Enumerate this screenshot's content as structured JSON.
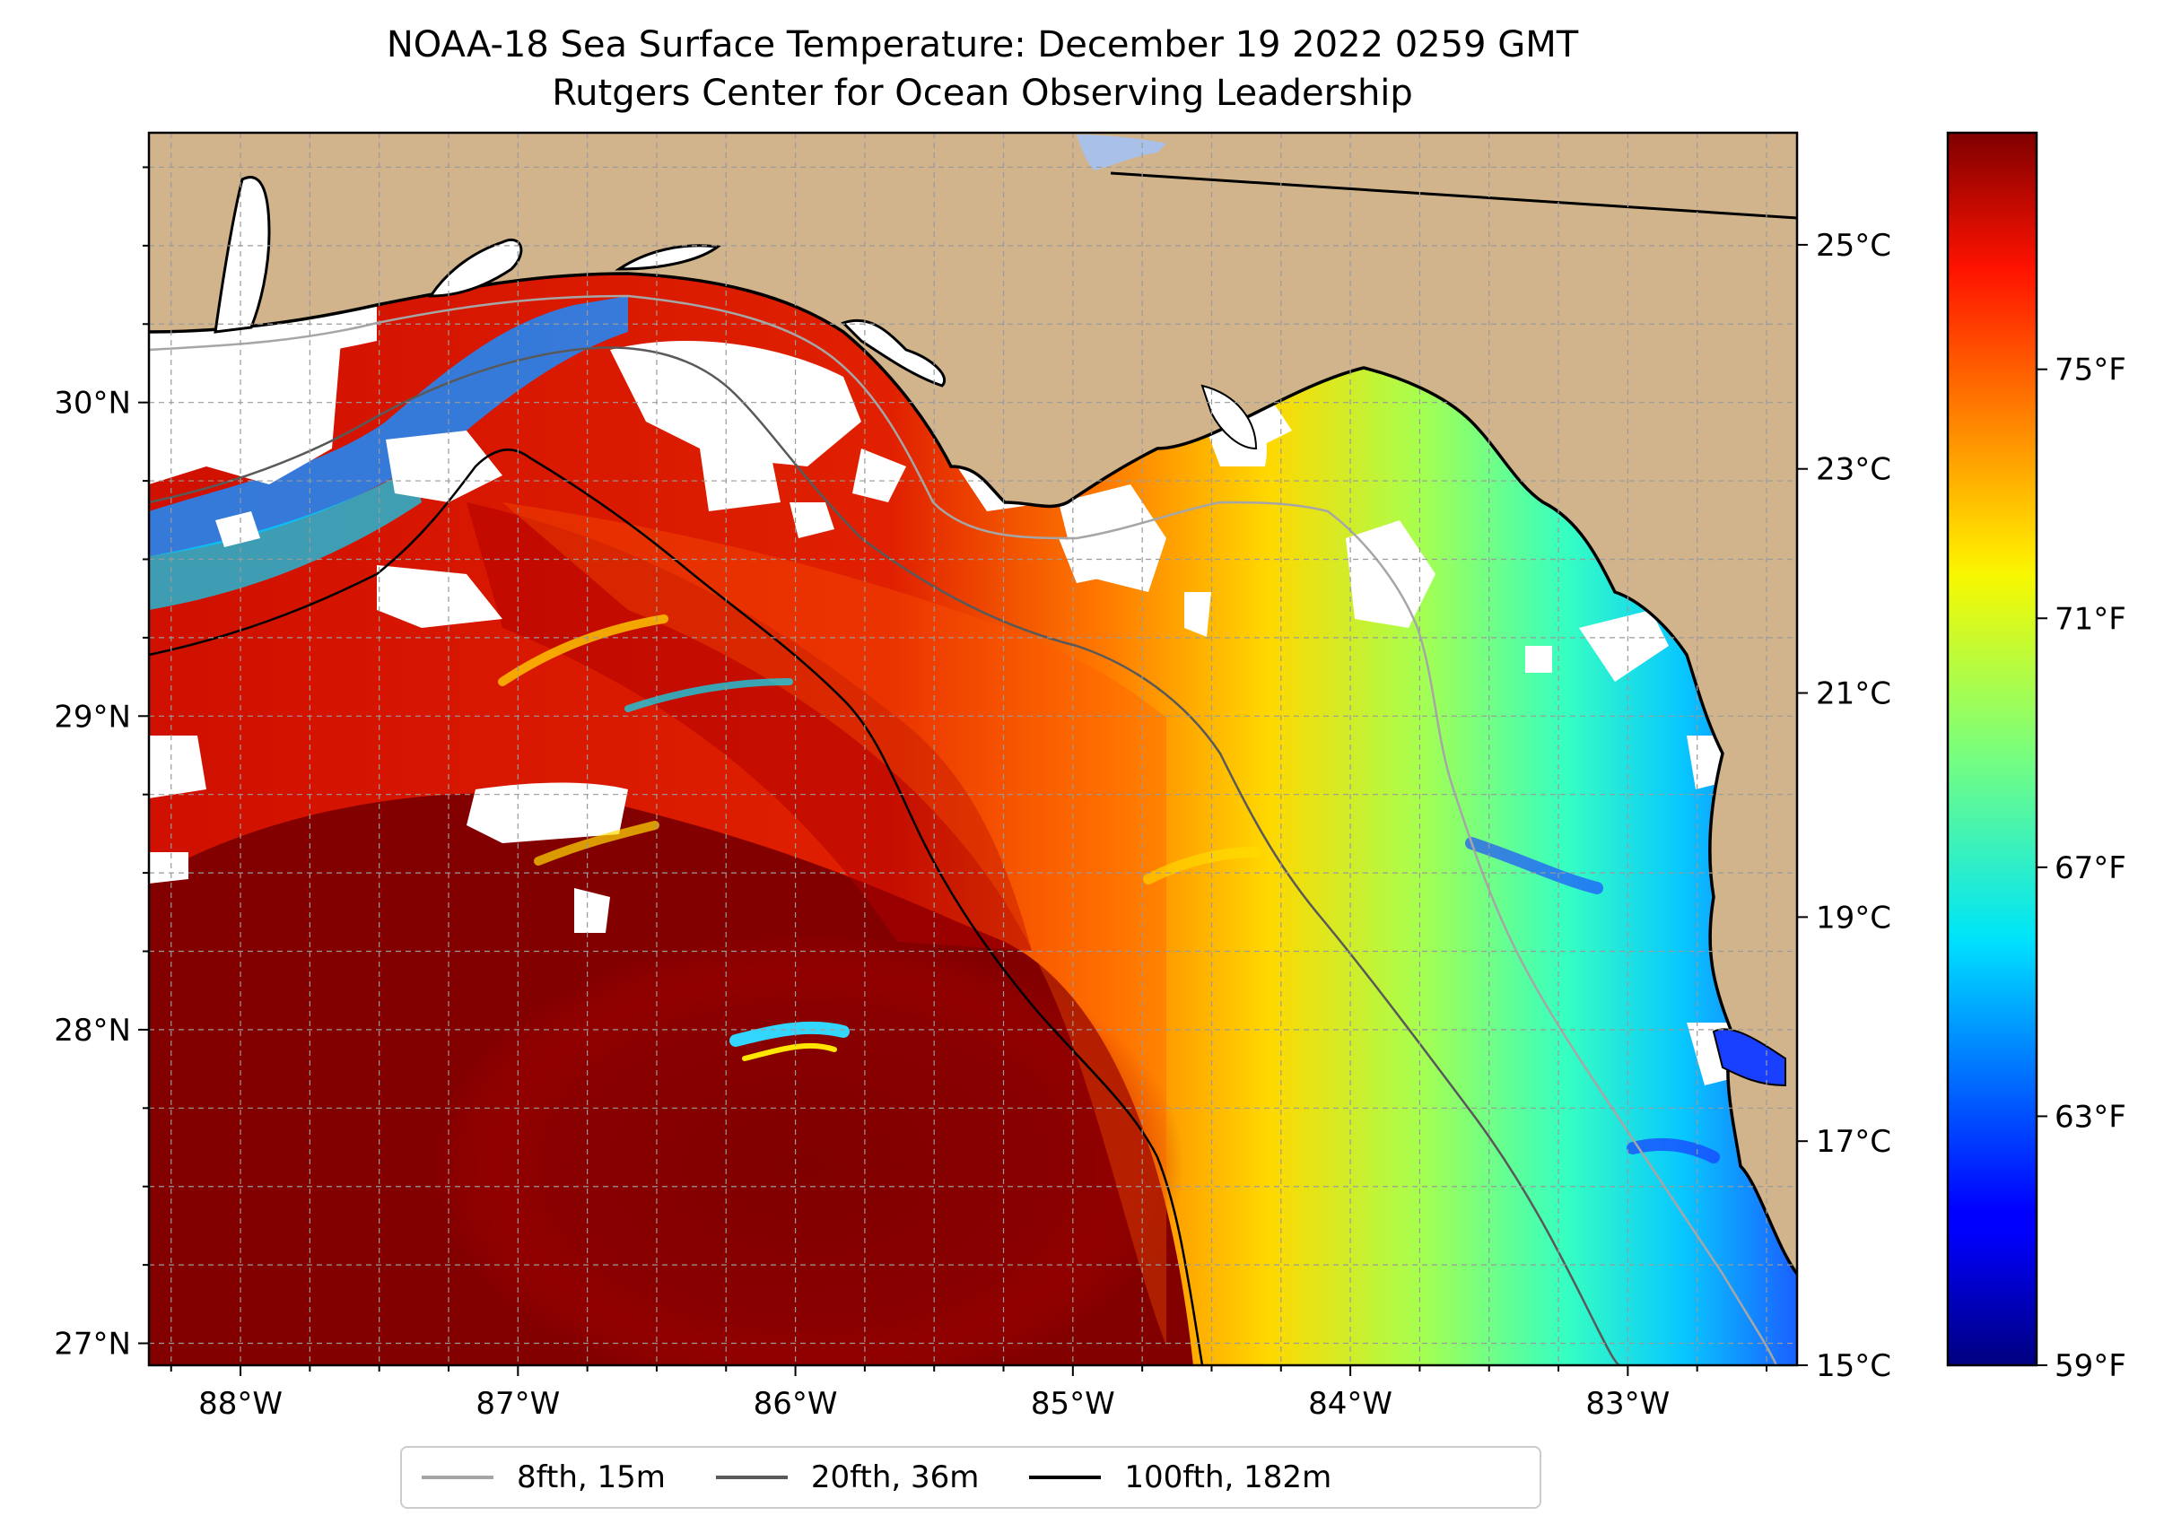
{
  "title": "NOAA-18 Sea Surface Temperature: December 19 2022 0259 GMT",
  "subtitle": "Rutgers Center for Ocean Observing Leadership",
  "map": {
    "lat_range": [
      26.93,
      30.86
    ],
    "lon_range": [
      -88.33,
      -82.39
    ],
    "lat_ticks": [
      {
        "value": 30,
        "label": "30°N"
      },
      {
        "value": 29,
        "label": "29°N"
      },
      {
        "value": 28,
        "label": "28°N"
      },
      {
        "value": 27,
        "label": "27°N"
      }
    ],
    "lon_ticks": [
      {
        "value": -88,
        "label": "88°W"
      },
      {
        "value": -87,
        "label": "87°W"
      },
      {
        "value": -86,
        "label": "86°W"
      },
      {
        "value": -85,
        "label": "85°W"
      },
      {
        "value": -84,
        "label": "84°W"
      },
      {
        "value": -83,
        "label": "83°W"
      }
    ],
    "gridlines": true,
    "land_color": "#d1b48c",
    "cloud_mask_color": "#ffffff"
  },
  "colorbar": {
    "colormap": "jet",
    "min_c": 15,
    "max_c": 26,
    "celsius_ticks": [
      {
        "value": 25,
        "label": "25°C"
      },
      {
        "value": 23,
        "label": "23°C"
      },
      {
        "value": 21,
        "label": "21°C"
      },
      {
        "value": 19,
        "label": "19°C"
      },
      {
        "value": 17,
        "label": "17°C"
      },
      {
        "value": 15,
        "label": "15°C"
      }
    ],
    "fahrenheit_ticks": [
      {
        "value": 75,
        "label": "75°F"
      },
      {
        "value": 71,
        "label": "71°F"
      },
      {
        "value": 67,
        "label": "67°F"
      },
      {
        "value": 63,
        "label": "63°F"
      },
      {
        "value": 59,
        "label": "59°F"
      }
    ]
  },
  "legend": {
    "placement": "bottom-center",
    "items": [
      {
        "label": "8fth, 15m",
        "color": "#a6a6a6"
      },
      {
        "label": "20fth, 36m",
        "color": "#595959"
      },
      {
        "label": "100fth, 182m",
        "color": "#000000"
      }
    ]
  }
}
